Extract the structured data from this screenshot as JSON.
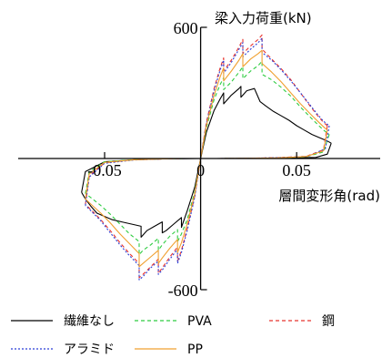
{
  "chart_data": {
    "type": "line",
    "title": "",
    "xlabel": "層間変形角(rad)",
    "ylabel": "梁入力荷重(kN)",
    "xlim": [
      -0.095,
      0.0935
    ],
    "ylim": [
      -600,
      600
    ],
    "x_ticks": [
      {
        "value": -0.05,
        "label": "-0.05"
      },
      {
        "value": 0,
        "label": "0"
      },
      {
        "value": 0.05,
        "label": "0.05"
      }
    ],
    "y_ticks": [
      {
        "value": 600,
        "label": "600"
      },
      {
        "value": -600,
        "label": "-600"
      }
    ],
    "grid": false,
    "legend_position": "bottom",
    "series": [
      {
        "name": "繊維なし",
        "color": "#000000",
        "dash": "solid",
        "upper": [
          [
            0,
            0
          ],
          [
            0.003,
            120
          ],
          [
            0.007,
            220
          ],
          [
            0.01,
            270
          ],
          [
            0.012,
            300
          ],
          [
            0.012,
            250
          ],
          [
            0.016,
            290
          ],
          [
            0.02,
            320
          ],
          [
            0.021,
            330
          ],
          [
            0.021,
            280
          ],
          [
            0.024,
            310
          ],
          [
            0.028,
            320
          ],
          [
            0.029,
            300
          ],
          [
            0.031,
            260
          ],
          [
            0.034,
            240
          ],
          [
            0.038,
            215
          ],
          [
            0.042,
            195
          ],
          [
            0.046,
            175
          ],
          [
            0.05,
            150
          ],
          [
            0.054,
            130
          ],
          [
            0.058,
            110
          ],
          [
            0.062,
            95
          ],
          [
            0.066,
            80
          ],
          [
            0.068,
            70
          ]
        ],
        "unload_pos": [
          [
            0.068,
            70
          ],
          [
            0.066,
            20
          ],
          [
            0.06,
            5
          ],
          [
            0.05,
            3
          ],
          [
            0.035,
            2
          ],
          [
            0.02,
            1
          ],
          [
            0.008,
            0
          ],
          [
            0,
            0
          ]
        ],
        "lower": [
          [
            0,
            0
          ],
          [
            -0.003,
            -130
          ],
          [
            -0.007,
            -240
          ],
          [
            -0.009,
            -290
          ],
          [
            -0.01,
            -315
          ],
          [
            -0.01,
            -270
          ],
          [
            -0.014,
            -300
          ],
          [
            -0.018,
            -330
          ],
          [
            -0.02,
            -340
          ],
          [
            -0.02,
            -290
          ],
          [
            -0.024,
            -310
          ],
          [
            -0.028,
            -330
          ],
          [
            -0.031,
            -360
          ],
          [
            -0.031,
            -310
          ],
          [
            -0.036,
            -300
          ],
          [
            -0.041,
            -290
          ],
          [
            -0.046,
            -280
          ],
          [
            -0.05,
            -265
          ],
          [
            -0.054,
            -250
          ],
          [
            -0.057,
            -220
          ],
          [
            -0.06,
            -185
          ],
          [
            -0.062,
            -155
          ]
        ],
        "unload_neg": [
          [
            -0.062,
            -155
          ],
          [
            -0.06,
            -60
          ],
          [
            -0.05,
            -15
          ],
          [
            -0.035,
            -6
          ],
          [
            -0.02,
            -2
          ],
          [
            -0.008,
            -1
          ],
          [
            0,
            0
          ]
        ]
      },
      {
        "name": "PVA",
        "color": "#2ecc40",
        "dash": "4 3",
        "upper": [
          [
            0,
            0
          ],
          [
            0.003,
            140
          ],
          [
            0.007,
            270
          ],
          [
            0.01,
            335
          ],
          [
            0.012,
            370
          ],
          [
            0.012,
            315
          ],
          [
            0.016,
            350
          ],
          [
            0.02,
            395
          ],
          [
            0.022,
            420
          ],
          [
            0.022,
            365
          ],
          [
            0.026,
            400
          ],
          [
            0.03,
            425
          ],
          [
            0.032,
            445
          ],
          [
            0.032,
            385
          ],
          [
            0.037,
            360
          ],
          [
            0.042,
            325
          ],
          [
            0.047,
            285
          ],
          [
            0.052,
            235
          ],
          [
            0.057,
            190
          ],
          [
            0.061,
            155
          ],
          [
            0.064,
            130
          ],
          [
            0.067,
            110
          ]
        ],
        "unload_pos": [
          [
            0.067,
            110
          ],
          [
            0.064,
            30
          ],
          [
            0.055,
            8
          ],
          [
            0.04,
            3
          ],
          [
            0.025,
            1
          ],
          [
            0.01,
            0
          ],
          [
            0,
            0
          ]
        ],
        "lower": [
          [
            0,
            0
          ],
          [
            -0.003,
            -150
          ],
          [
            -0.007,
            -280
          ],
          [
            -0.01,
            -345
          ],
          [
            -0.012,
            -380
          ],
          [
            -0.012,
            -325
          ],
          [
            -0.016,
            -355
          ],
          [
            -0.02,
            -395
          ],
          [
            -0.022,
            -420
          ],
          [
            -0.022,
            -365
          ],
          [
            -0.026,
            -395
          ],
          [
            -0.03,
            -420
          ],
          [
            -0.032,
            -440
          ],
          [
            -0.032,
            -380
          ],
          [
            -0.037,
            -345
          ],
          [
            -0.042,
            -300
          ],
          [
            -0.047,
            -255
          ],
          [
            -0.052,
            -215
          ],
          [
            -0.057,
            -180
          ],
          [
            -0.06,
            -160
          ]
        ],
        "unload_neg": [
          [
            -0.06,
            -160
          ],
          [
            -0.058,
            -60
          ],
          [
            -0.05,
            -15
          ],
          [
            -0.035,
            -5
          ],
          [
            -0.02,
            -2
          ],
          [
            -0.008,
            0
          ],
          [
            0,
            0
          ]
        ]
      },
      {
        "name": "鋼",
        "color": "#e8342e",
        "dash": "4 3",
        "upper": [
          [
            0,
            0
          ],
          [
            0.003,
            165
          ],
          [
            0.007,
            320
          ],
          [
            0.01,
            410
          ],
          [
            0.012,
            460
          ],
          [
            0.012,
            400
          ],
          [
            0.016,
            450
          ],
          [
            0.02,
            510
          ],
          [
            0.022,
            545
          ],
          [
            0.022,
            480
          ],
          [
            0.026,
            515
          ],
          [
            0.03,
            545
          ],
          [
            0.032,
            565
          ],
          [
            0.032,
            500
          ],
          [
            0.037,
            455
          ],
          [
            0.042,
            410
          ],
          [
            0.047,
            360
          ],
          [
            0.052,
            300
          ],
          [
            0.057,
            240
          ],
          [
            0.061,
            195
          ],
          [
            0.064,
            165
          ],
          [
            0.066,
            150
          ]
        ],
        "unload_pos": [
          [
            0.066,
            150
          ],
          [
            0.064,
            40
          ],
          [
            0.055,
            10
          ],
          [
            0.04,
            4
          ],
          [
            0.025,
            1
          ],
          [
            0.01,
            0
          ],
          [
            0,
            0
          ]
        ],
        "lower": [
          [
            0,
            0
          ],
          [
            -0.003,
            -170
          ],
          [
            -0.007,
            -320
          ],
          [
            -0.01,
            -420
          ],
          [
            -0.012,
            -470
          ],
          [
            -0.012,
            -405
          ],
          [
            -0.016,
            -450
          ],
          [
            -0.02,
            -500
          ],
          [
            -0.022,
            -525
          ],
          [
            -0.022,
            -460
          ],
          [
            -0.026,
            -495
          ],
          [
            -0.03,
            -530
          ],
          [
            -0.032,
            -545
          ],
          [
            -0.032,
            -480
          ],
          [
            -0.037,
            -435
          ],
          [
            -0.042,
            -385
          ],
          [
            -0.047,
            -330
          ],
          [
            -0.052,
            -280
          ],
          [
            -0.057,
            -235
          ],
          [
            -0.06,
            -210
          ]
        ],
        "unload_neg": [
          [
            -0.06,
            -210
          ],
          [
            -0.058,
            -80
          ],
          [
            -0.05,
            -20
          ],
          [
            -0.035,
            -6
          ],
          [
            -0.02,
            -2
          ],
          [
            -0.008,
            0
          ],
          [
            0,
            0
          ]
        ]
      },
      {
        "name": "アラミド",
        "color": "#2a3fd8",
        "dash": "2 2",
        "upper": [
          [
            0,
            0
          ],
          [
            0.003,
            160
          ],
          [
            0.007,
            310
          ],
          [
            0.01,
            400
          ],
          [
            0.012,
            450
          ],
          [
            0.012,
            390
          ],
          [
            0.016,
            440
          ],
          [
            0.02,
            500
          ],
          [
            0.022,
            530
          ],
          [
            0.022,
            465
          ],
          [
            0.026,
            500
          ],
          [
            0.03,
            530
          ],
          [
            0.032,
            550
          ],
          [
            0.032,
            485
          ],
          [
            0.037,
            450
          ],
          [
            0.042,
            405
          ],
          [
            0.047,
            355
          ],
          [
            0.052,
            300
          ],
          [
            0.057,
            245
          ],
          [
            0.061,
            200
          ],
          [
            0.064,
            170
          ],
          [
            0.067,
            150
          ]
        ],
        "unload_pos": [
          [
            0.067,
            150
          ],
          [
            0.065,
            45
          ],
          [
            0.056,
            10
          ],
          [
            0.04,
            4
          ],
          [
            0.025,
            1
          ],
          [
            0.01,
            0
          ],
          [
            0,
            0
          ]
        ],
        "lower": [
          [
            0,
            0
          ],
          [
            -0.003,
            -175
          ],
          [
            -0.007,
            -330
          ],
          [
            -0.01,
            -430
          ],
          [
            -0.012,
            -480
          ],
          [
            -0.012,
            -415
          ],
          [
            -0.016,
            -460
          ],
          [
            -0.02,
            -510
          ],
          [
            -0.022,
            -530
          ],
          [
            -0.022,
            -470
          ],
          [
            -0.026,
            -500
          ],
          [
            -0.03,
            -540
          ],
          [
            -0.032,
            -555
          ],
          [
            -0.032,
            -490
          ],
          [
            -0.037,
            -445
          ],
          [
            -0.042,
            -395
          ],
          [
            -0.047,
            -340
          ],
          [
            -0.052,
            -285
          ],
          [
            -0.057,
            -240
          ],
          [
            -0.06,
            -215
          ]
        ],
        "unload_neg": [
          [
            -0.06,
            -215
          ],
          [
            -0.058,
            -85
          ],
          [
            -0.05,
            -22
          ],
          [
            -0.035,
            -7
          ],
          [
            -0.02,
            -2
          ],
          [
            -0.008,
            0
          ],
          [
            0,
            0
          ]
        ]
      },
      {
        "name": "PP",
        "color": "#f0a030",
        "dash": "solid",
        "upper": [
          [
            0,
            0
          ],
          [
            0.003,
            150
          ],
          [
            0.007,
            290
          ],
          [
            0.01,
            370
          ],
          [
            0.012,
            415
          ],
          [
            0.012,
            355
          ],
          [
            0.016,
            400
          ],
          [
            0.02,
            450
          ],
          [
            0.022,
            480
          ],
          [
            0.022,
            420
          ],
          [
            0.026,
            455
          ],
          [
            0.03,
            480
          ],
          [
            0.032,
            495
          ],
          [
            0.032,
            435
          ],
          [
            0.037,
            395
          ],
          [
            0.042,
            350
          ],
          [
            0.047,
            300
          ],
          [
            0.052,
            250
          ],
          [
            0.057,
            205
          ],
          [
            0.061,
            170
          ],
          [
            0.064,
            145
          ],
          [
            0.066,
            130
          ]
        ],
        "unload_pos": [
          [
            0.066,
            130
          ],
          [
            0.064,
            35
          ],
          [
            0.055,
            9
          ],
          [
            0.04,
            3
          ],
          [
            0.025,
            1
          ],
          [
            0.01,
            0
          ],
          [
            0,
            0
          ]
        ],
        "lower": [
          [
            0,
            0
          ],
          [
            -0.003,
            -160
          ],
          [
            -0.007,
            -300
          ],
          [
            -0.01,
            -385
          ],
          [
            -0.012,
            -430
          ],
          [
            -0.012,
            -370
          ],
          [
            -0.016,
            -410
          ],
          [
            -0.02,
            -455
          ],
          [
            -0.022,
            -480
          ],
          [
            -0.022,
            -420
          ],
          [
            -0.026,
            -450
          ],
          [
            -0.03,
            -480
          ],
          [
            -0.032,
            -495
          ],
          [
            -0.032,
            -435
          ],
          [
            -0.037,
            -390
          ],
          [
            -0.042,
            -345
          ],
          [
            -0.047,
            -295
          ],
          [
            -0.052,
            -250
          ],
          [
            -0.057,
            -210
          ],
          [
            -0.06,
            -185
          ]
        ],
        "unload_neg": [
          [
            -0.06,
            -185
          ],
          [
            -0.058,
            -70
          ],
          [
            -0.05,
            -18
          ],
          [
            -0.035,
            -6
          ],
          [
            -0.02,
            -2
          ],
          [
            -0.008,
            0
          ],
          [
            0,
            0
          ]
        ]
      }
    ]
  }
}
